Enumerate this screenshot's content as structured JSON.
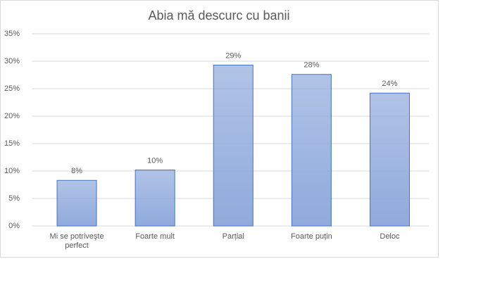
{
  "chart_data": {
    "type": "bar",
    "title": "Abia mă descurc cu banii",
    "categories": [
      "Mi se potriveşte perfect",
      "Foarte mult",
      "Parțial",
      "Foarte puțin",
      "Deloc"
    ],
    "values": [
      8.3,
      10.2,
      29.3,
      27.6,
      24.2
    ],
    "value_labels": [
      "8%",
      "10%",
      "29%",
      "28%",
      "24%"
    ],
    "color": "#8faadc",
    "ylim": [
      0,
      35
    ],
    "yticks": [
      {
        "value": 0,
        "label": "0%"
      },
      {
        "value": 5,
        "label": "5%"
      },
      {
        "value": 10,
        "label": "10%"
      },
      {
        "value": 15,
        "label": "15%"
      },
      {
        "value": 20,
        "label": "20%"
      },
      {
        "value": 25,
        "label": "25%"
      },
      {
        "value": 30,
        "label": "30%"
      },
      {
        "value": 35,
        "label": "35%"
      }
    ],
    "grid": true
  }
}
